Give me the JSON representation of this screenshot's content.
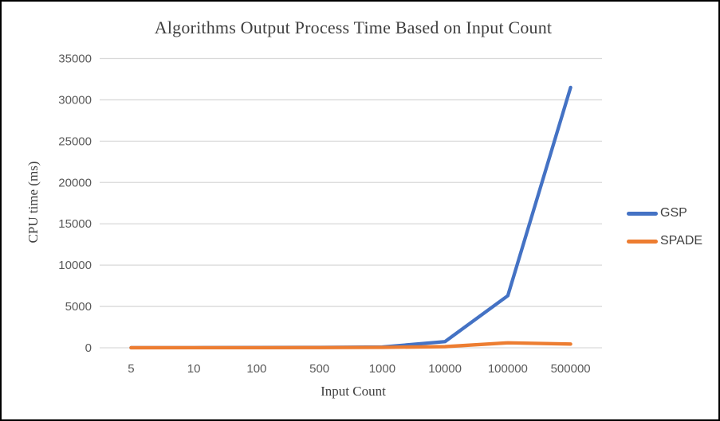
{
  "chart_data": {
    "type": "line",
    "title": "Algorithms Output Process Time Based on Input Count",
    "xlabel": "Input Count",
    "ylabel": "CPU time (ms)",
    "categories": [
      "5",
      "10",
      "100",
      "500",
      "1000",
      "10000",
      "100000",
      "500000"
    ],
    "series": [
      {
        "name": "GSP",
        "color": "#4472C4",
        "values": [
          10,
          15,
          30,
          50,
          90,
          750,
          6300,
          31500
        ]
      },
      {
        "name": "SPADE",
        "color": "#ED7D31",
        "values": [
          5,
          10,
          15,
          25,
          45,
          140,
          600,
          450
        ]
      }
    ],
    "ylim": [
      0,
      35000
    ],
    "yticks": [
      0,
      5000,
      10000,
      15000,
      20000,
      25000,
      30000,
      35000
    ],
    "grid": "horizontal-only",
    "legend_position": "right"
  },
  "colors": {
    "gridline": "#d9d9d9",
    "tick_label": "#595959",
    "title_text": "#3f3f3f",
    "legend_text": "#404040",
    "border": "#000000",
    "background": "#ffffff"
  }
}
